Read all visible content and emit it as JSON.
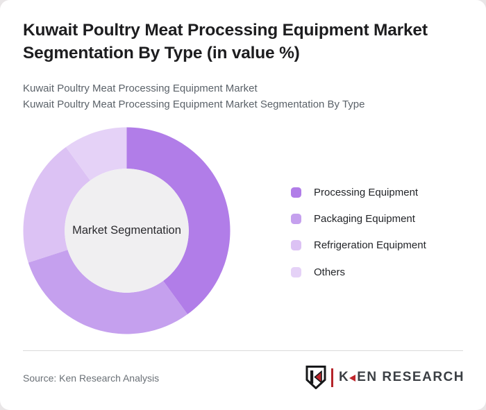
{
  "header": {
    "title": "Kuwait Poultry Meat Processing Equipment Market Segmentation By Type (in value %)",
    "subtitle_line1": "Kuwait Poultry Meat Processing Equipment Market",
    "subtitle_line2": "Kuwait Poultry Meat Processing Equipment Market Segmentation By Type"
  },
  "chart_data": {
    "type": "pie",
    "subtype": "donut",
    "title": "Kuwait Poultry Meat Processing Equipment Market Segmentation By Type (in value %)",
    "center_label": "Market Segmentation",
    "categories": [
      "Processing Equipment",
      "Packaging Equipment",
      "Refrigeration Equipment",
      "Others"
    ],
    "values": [
      40,
      30,
      20,
      10
    ],
    "unit": "%",
    "colors": [
      "#b17de8",
      "#c5a0ee",
      "#dcc2f4",
      "#e5d2f7"
    ],
    "hole_color": "#f0eff1",
    "inner_radius_ratio": 0.6,
    "start_angle_deg": 0,
    "direction": "clockwise",
    "legend_position": "right",
    "data_labels_shown": false
  },
  "footer": {
    "source": "Source: Ken Research Analysis",
    "logo_first_letter": "K",
    "logo_rest": "EN RESEARCH"
  },
  "theme": {
    "card_background": "#ffffff",
    "page_background": "#e9e6e7",
    "title_color": "#1d1d1f",
    "subtitle_color": "#5b6269",
    "divider_color": "#dadada",
    "logo_red": "#c0272d"
  }
}
